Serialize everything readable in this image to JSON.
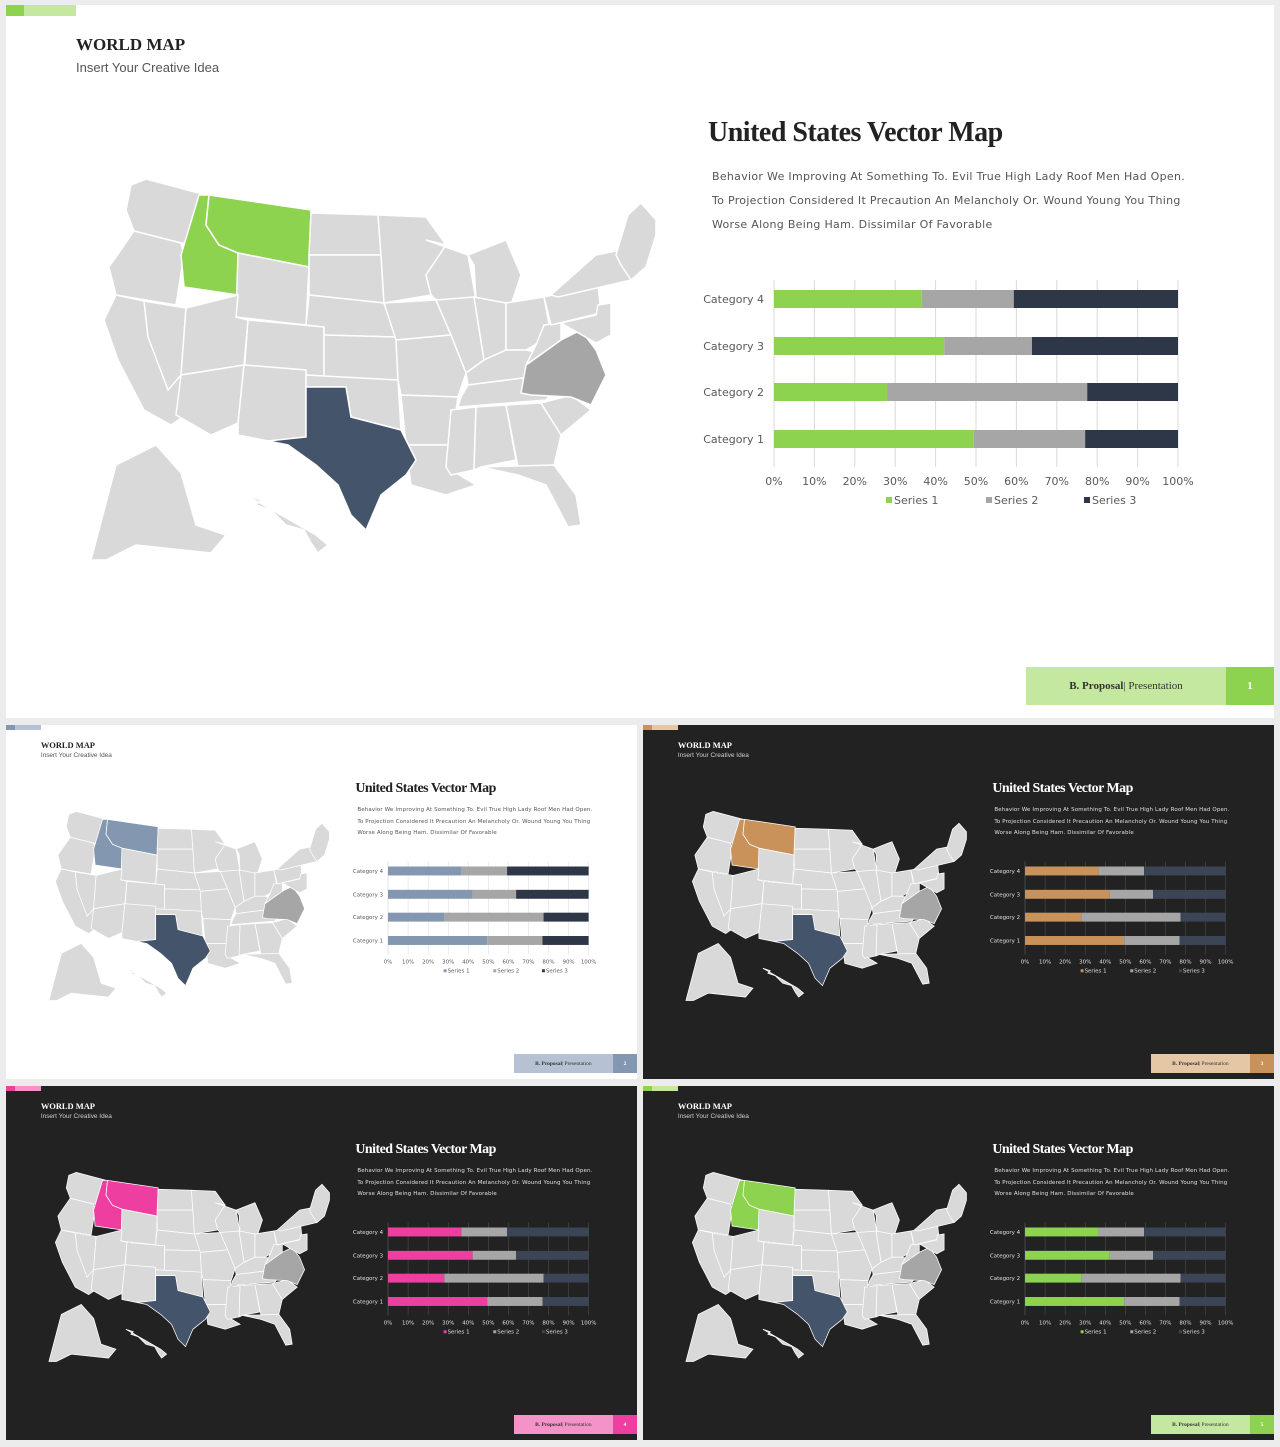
{
  "slides": [
    {
      "theme": "light",
      "accent": "#8dd34f",
      "accent_light": "#c5e8a0",
      "footer_num_color": "#ffffff",
      "title": "WORLD MAP",
      "subtitle": "Insert Your Creative Idea",
      "heading": "United States Vector Map",
      "body": [
        "Behavior We Improving At Something To. Evil True High Lady Roof Men Had Open.",
        "To Projection Considered It Precaution An Melancholy Or. Wound Young You Thing",
        "Worse Along Being Ham. Dissimilar Of Favorable"
      ],
      "footer_bold": "B. Proposal",
      "footer_rest": "| Presentation",
      "page": "1"
    },
    {
      "theme": "light",
      "accent": "#8497b0",
      "accent_light": "#b6c2d4",
      "footer_num_color": "#ffffff",
      "title": "WORLD MAP",
      "subtitle": "Insert Your Creative Idea",
      "heading": "United States Vector Map",
      "body": [
        "Behavior We Improving At Something To. Evil True High Lady Roof Men Had Open.",
        "To Projection Considered It Precaution An Melancholy Or. Wound Young You Thing",
        "Worse Along Being Ham. Dissimilar Of Favorable"
      ],
      "footer_bold": "B. Proposal",
      "footer_rest": "| Presentation",
      "page": "2"
    },
    {
      "theme": "dark",
      "accent": "#c8925a",
      "accent_light": "#e5c7a6",
      "footer_num_color": "#ffffff",
      "title": "WORLD MAP",
      "subtitle": "Insert Your Creative Idea",
      "heading": "United States Vector Map",
      "body": [
        "Behavior We Improving At Something To. Evil True High Lady Roof Men Had Open.",
        "To Projection Considered It Precaution An Melancholy Or. Wound Young You Thing",
        "Worse Along Being Ham. Dissimilar Of Favorable"
      ],
      "footer_bold": "B. Proposal",
      "footer_rest": "| Presentation",
      "page": "3"
    },
    {
      "theme": "dark",
      "accent": "#ee3fa0",
      "accent_light": "#f592c8",
      "footer_num_color": "#ffffff",
      "title": "WORLD MAP",
      "subtitle": "Insert Your Creative Idea",
      "heading": "United States Vector Map",
      "body": [
        "Behavior We Improving At Something To. Evil True High Lady Roof Men Had Open.",
        "To Projection Considered It Precaution An Melancholy Or. Wound Young You Thing",
        "Worse Along Being Ham. Dissimilar Of Favorable"
      ],
      "footer_bold": "B. Proposal",
      "footer_rest": "| Presentation",
      "page": "4"
    },
    {
      "theme": "dark",
      "accent": "#8dd34f",
      "accent_light": "#c5e8a0",
      "footer_num_color": "#ffffff",
      "title": "WORLD MAP",
      "subtitle": "Insert Your Creative Idea",
      "heading": "United States Vector Map",
      "body": [
        "Behavior We Improving At Something To. Evil True High Lady Roof Men Had Open.",
        "To Projection Considered It Precaution An Melancholy Or. Wound Young You Thing",
        "Worse Along Being Ham. Dissimilar Of Favorable"
      ],
      "footer_bold": "B. Proposal",
      "footer_rest": "| Presentation",
      "page": "5"
    }
  ],
  "map_colors": {
    "state_fill": "#d9d9d9",
    "texas": "#44546a",
    "virginia_carolina": "#a6a6a6"
  },
  "chart_data": {
    "type": "bar",
    "orientation": "horizontal",
    "stacked": "100%",
    "categories": [
      "Category 1",
      "Category 2",
      "Category 3",
      "Category 4"
    ],
    "series": [
      {
        "name": "Series 1",
        "values": [
          4.3,
          2.5,
          3.5,
          4.5
        ]
      },
      {
        "name": "Series 2",
        "values": [
          2.4,
          4.4,
          1.8,
          2.8
        ]
      },
      {
        "name": "Series 3",
        "values": [
          2.0,
          2.0,
          3.0,
          5.0
        ]
      }
    ],
    "series_colors": [
      "accent",
      "#a6a6a6",
      "#2e3748"
    ],
    "xtick_labels": [
      "0%",
      "10%",
      "20%",
      "30%",
      "40%",
      "50%",
      "60%",
      "70%",
      "80%",
      "90%",
      "100%"
    ],
    "legend": "bottom",
    "grid": true
  }
}
